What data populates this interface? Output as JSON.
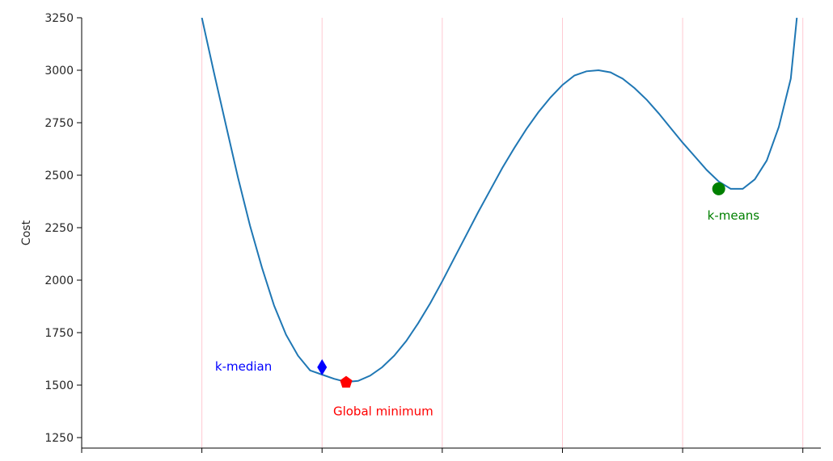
{
  "chart_data": {
    "type": "line",
    "title": "",
    "xlabel": "",
    "ylabel": "Cost",
    "xlim": [
      0,
      6.15
    ],
    "ylim": [
      1200,
      3250
    ],
    "yticks": [
      1250,
      1500,
      1750,
      2000,
      2250,
      2500,
      2750,
      3000,
      3250
    ],
    "xgrid_positions": [
      1,
      2,
      3,
      4,
      5,
      6
    ],
    "grid": "vertical only, pink",
    "series": [
      {
        "name": "",
        "color": "#1f77b4",
        "x": [
          1.0,
          1.1,
          1.2,
          1.3,
          1.4,
          1.5,
          1.6,
          1.7,
          1.8,
          1.9,
          2.0,
          2.1,
          2.2,
          2.3,
          2.4,
          2.5,
          2.6,
          2.7,
          2.8,
          2.9,
          3.0,
          3.1,
          3.2,
          3.3,
          3.4,
          3.5,
          3.6,
          3.7,
          3.8,
          3.9,
          4.0,
          4.1,
          4.2,
          4.3,
          4.4,
          4.5,
          4.6,
          4.7,
          4.8,
          4.9,
          5.0,
          5.1,
          5.2,
          5.3,
          5.4,
          5.5,
          5.6,
          5.7,
          5.8,
          5.9,
          5.95
        ],
        "y": [
          3250,
          2990,
          2740,
          2490,
          2260,
          2060,
          1880,
          1740,
          1640,
          1570,
          1550,
          1530,
          1515,
          1520,
          1545,
          1585,
          1640,
          1710,
          1795,
          1890,
          1995,
          2105,
          2215,
          2325,
          2430,
          2535,
          2630,
          2720,
          2800,
          2870,
          2930,
          2975,
          2995,
          3000,
          2990,
          2960,
          2915,
          2860,
          2795,
          2725,
          2655,
          2590,
          2525,
          2470,
          2435,
          2435,
          2480,
          2570,
          2730,
          2960,
          3250
        ]
      }
    ],
    "markers": [
      {
        "label": "k-median",
        "x": 2.0,
        "y": 1585,
        "shape": "diamond",
        "color": "#0000ff"
      },
      {
        "label": "Global minimum",
        "x": 2.2,
        "y": 1513,
        "shape": "pentagon",
        "color": "#ff0000"
      },
      {
        "label": "k-means",
        "x": 5.3,
        "y": 2435,
        "shape": "circle",
        "color": "#008000"
      }
    ]
  }
}
